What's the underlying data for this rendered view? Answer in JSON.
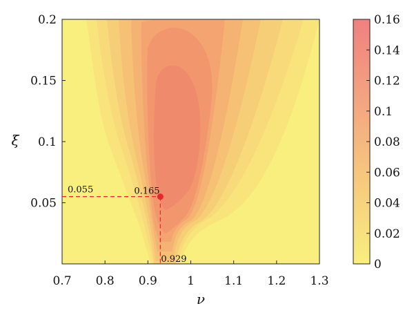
{
  "chart_data": {
    "type": "heatmap",
    "xlabel": "ν",
    "ylabel": "ξ",
    "xlim": [
      0.7,
      1.3
    ],
    "ylim": [
      0.0,
      0.2
    ],
    "x_ticks": [
      {
        "value": 0.7,
        "label": "0.7"
      },
      {
        "value": 0.8,
        "label": "0.8"
      },
      {
        "value": 0.9,
        "label": "0.9"
      },
      {
        "value": 1.0,
        "label": "1"
      },
      {
        "value": 1.1,
        "label": "1.1"
      },
      {
        "value": 1.2,
        "label": "1.2"
      },
      {
        "value": 1.3,
        "label": "1.3"
      }
    ],
    "y_ticks": [
      {
        "value": 0.05,
        "label": "0.05"
      },
      {
        "value": 0.1,
        "label": "0.1"
      },
      {
        "value": 0.15,
        "label": "0.15"
      },
      {
        "value": 0.2,
        "label": "0.2"
      }
    ],
    "colorbar": {
      "range": [
        0,
        0.16
      ],
      "ticks": [
        {
          "value": 0,
          "label": "0"
        },
        {
          "value": 0.02,
          "label": "0.02"
        },
        {
          "value": 0.04,
          "label": "0.04"
        },
        {
          "value": 0.06,
          "label": "0.06"
        },
        {
          "value": 0.08,
          "label": "0.08"
        },
        {
          "value": 0.1,
          "label": "0.1"
        },
        {
          "value": 0.12,
          "label": "0.12"
        },
        {
          "value": 0.14,
          "label": "0.14"
        },
        {
          "value": 0.16,
          "label": "0.16"
        }
      ],
      "color_low": "#f9ef7e",
      "color_high": "#f08080"
    },
    "peak": {
      "x": 0.929,
      "y": 0.055,
      "value": 0.165,
      "color": "#e8262e"
    },
    "annotations": {
      "x_label": "0.929",
      "y_label": "0.055",
      "value_label": "0.165"
    }
  }
}
